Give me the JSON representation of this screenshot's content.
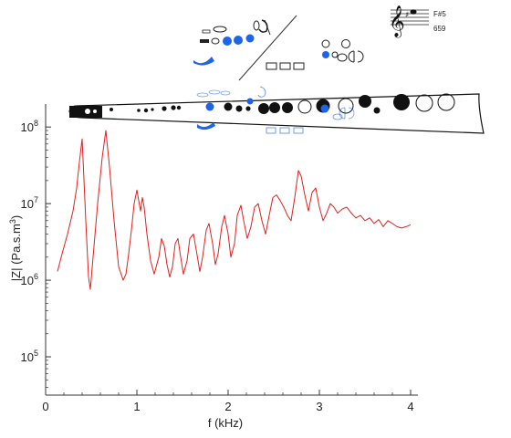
{
  "chart_data": {
    "type": "line",
    "title": "",
    "xlabel": "f (kHz)",
    "ylabel_prefix": "|Z| (Pa.s.m",
    "ylabel_sup": "3",
    "ylabel_suffix": ")",
    "xlim": [
      0,
      4
    ],
    "ylim_log10": [
      4.5,
      8.3
    ],
    "y_scale": "log",
    "grid": false,
    "x_ticks": [
      0,
      1,
      2,
      3,
      4
    ],
    "y_ticks": [
      {
        "base": "10",
        "exp": "5",
        "log10": 5
      },
      {
        "base": "10",
        "exp": "6",
        "log10": 6
      },
      {
        "base": "10",
        "exp": "7",
        "log10": 7
      },
      {
        "base": "10",
        "exp": "8",
        "log10": 8
      }
    ],
    "series": [
      {
        "color": "#e02020",
        "x": [
          0.13,
          0.18,
          0.24,
          0.3,
          0.34,
          0.37,
          0.4,
          0.44,
          0.47,
          0.49,
          0.52,
          0.57,
          0.62,
          0.66,
          0.7,
          0.75,
          0.8,
          0.85,
          0.88,
          0.91,
          0.94,
          0.97,
          1.0,
          1.02,
          1.04,
          1.06,
          1.08,
          1.11,
          1.15,
          1.19,
          1.24,
          1.27,
          1.3,
          1.33,
          1.36,
          1.39,
          1.42,
          1.45,
          1.48,
          1.51,
          1.55,
          1.58,
          1.62,
          1.65,
          1.69,
          1.72,
          1.76,
          1.79,
          1.83,
          1.86,
          1.89,
          1.93,
          1.96,
          2.0,
          2.03,
          2.07,
          2.1,
          2.14,
          2.17,
          2.21,
          2.25,
          2.29,
          2.33,
          2.37,
          2.41,
          2.45,
          2.49,
          2.53,
          2.57,
          2.61,
          2.65,
          2.69,
          2.73,
          2.77,
          2.8,
          2.84,
          2.88,
          2.92,
          2.96,
          3.0,
          3.04,
          3.08,
          3.12,
          3.16,
          3.2,
          3.25,
          3.3,
          3.35,
          3.4,
          3.45,
          3.5,
          3.55,
          3.6,
          3.65,
          3.7,
          3.75,
          3.8,
          3.85,
          3.9,
          3.95,
          4.0
        ],
        "y": [
          1300000.0,
          2200000.0,
          4000000.0,
          8000000.0,
          16000000.0,
          35000000.0,
          70000000.0,
          6000000.0,
          1100000.0,
          760000.0,
          2000000.0,
          10000000.0,
          40000000.0,
          90000000.0,
          30000000.0,
          6000000.0,
          1500000.0,
          1000000.0,
          1200000.0,
          2200000.0,
          4500000.0,
          10000000.0,
          15000000.0,
          11000000.0,
          8000000.0,
          12000000.0,
          9000000.0,
          4000000.0,
          1800000.0,
          1200000.0,
          2000000.0,
          3500000.0,
          2800000.0,
          1600000.0,
          1100000.0,
          1500000.0,
          3000000.0,
          3500000.0,
          2000000.0,
          1200000.0,
          1800000.0,
          3500000.0,
          4000000.0,
          2500000.0,
          1300000.0,
          2000000.0,
          4500000.0,
          5500000.0,
          3000000.0,
          1600000.0,
          2200000.0,
          5000000.0,
          7000000.0,
          4000000.0,
          2000000.0,
          3000000.0,
          7000000.0,
          9500000.0,
          6000000.0,
          3500000.0,
          5000000.0,
          9000000.0,
          10000000.0,
          6000000.0,
          4000000.0,
          7000000.0,
          12000000.0,
          13000000.0,
          11000000.0,
          9000000.0,
          7000000.0,
          6000000.0,
          12000000.0,
          27000000.0,
          23000000.0,
          13000000.0,
          8000000.0,
          14000000.0,
          16000000.0,
          9000000.0,
          6000000.0,
          7500000.0,
          10000000.0,
          9000000.0,
          7500000.0,
          8500000.0,
          9000000.0,
          7500000.0,
          6500000.0,
          7000000.0,
          6000000.0,
          6500000.0,
          5500000.0,
          6200000.0,
          5000000.0,
          6000000.0,
          5500000.0,
          5000000.0,
          4800000.0,
          5000000.0,
          5300000.0
        ]
      }
    ]
  },
  "inset": {
    "note_name": "F#5",
    "note_frequency": "659",
    "colors": {
      "closed_key": "#000000",
      "pressed_key": "#1e64e6",
      "outline": "#1e64e6"
    },
    "icons": [
      "treble-clef-icon",
      "sharp-icon",
      "note-head-icon"
    ]
  }
}
